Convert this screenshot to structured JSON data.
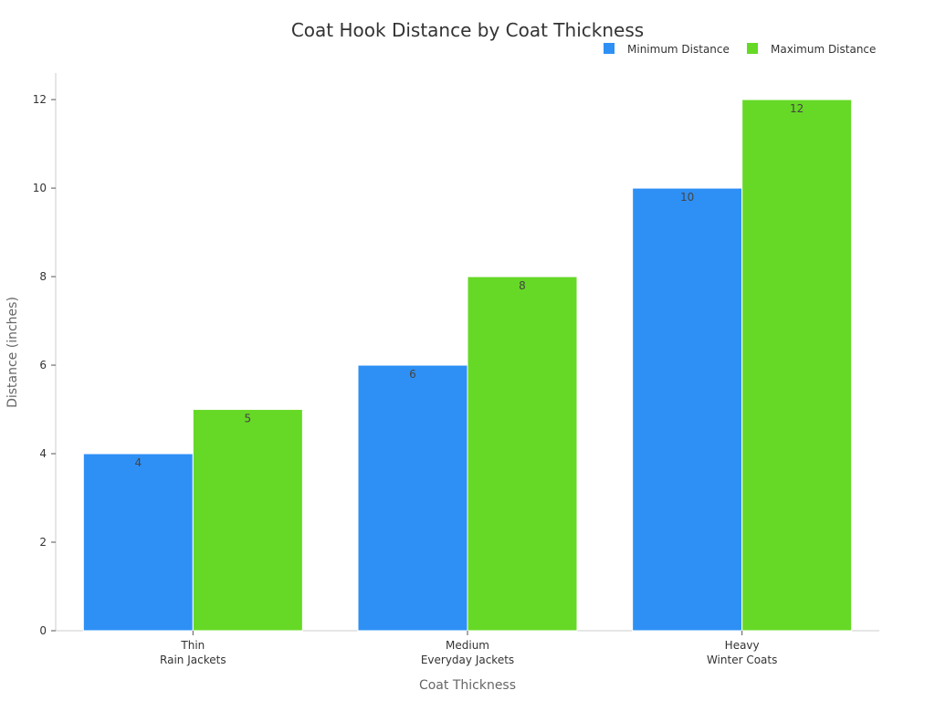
{
  "chart_data": {
    "type": "bar",
    "title": "Coat Hook Distance by Coat Thickness",
    "xlabel": "Coat Thickness",
    "ylabel": "Distance (inches)",
    "categories": [
      [
        "Thin",
        "Rain Jackets"
      ],
      [
        "Medium",
        "Everyday Jackets"
      ],
      [
        "Heavy",
        "Winter Coats"
      ]
    ],
    "series": [
      {
        "name": "Minimum Distance",
        "values": [
          4,
          6,
          10
        ],
        "color": "#2e90f5"
      },
      {
        "name": "Maximum Distance",
        "values": [
          5,
          8,
          12
        ],
        "color": "#66d926"
      }
    ],
    "ylim": [
      0,
      12.6
    ],
    "yticks": [
      0,
      2,
      4,
      6,
      8,
      10,
      12
    ],
    "grid": false,
    "legend_position": "top-right",
    "data_labels": true
  }
}
